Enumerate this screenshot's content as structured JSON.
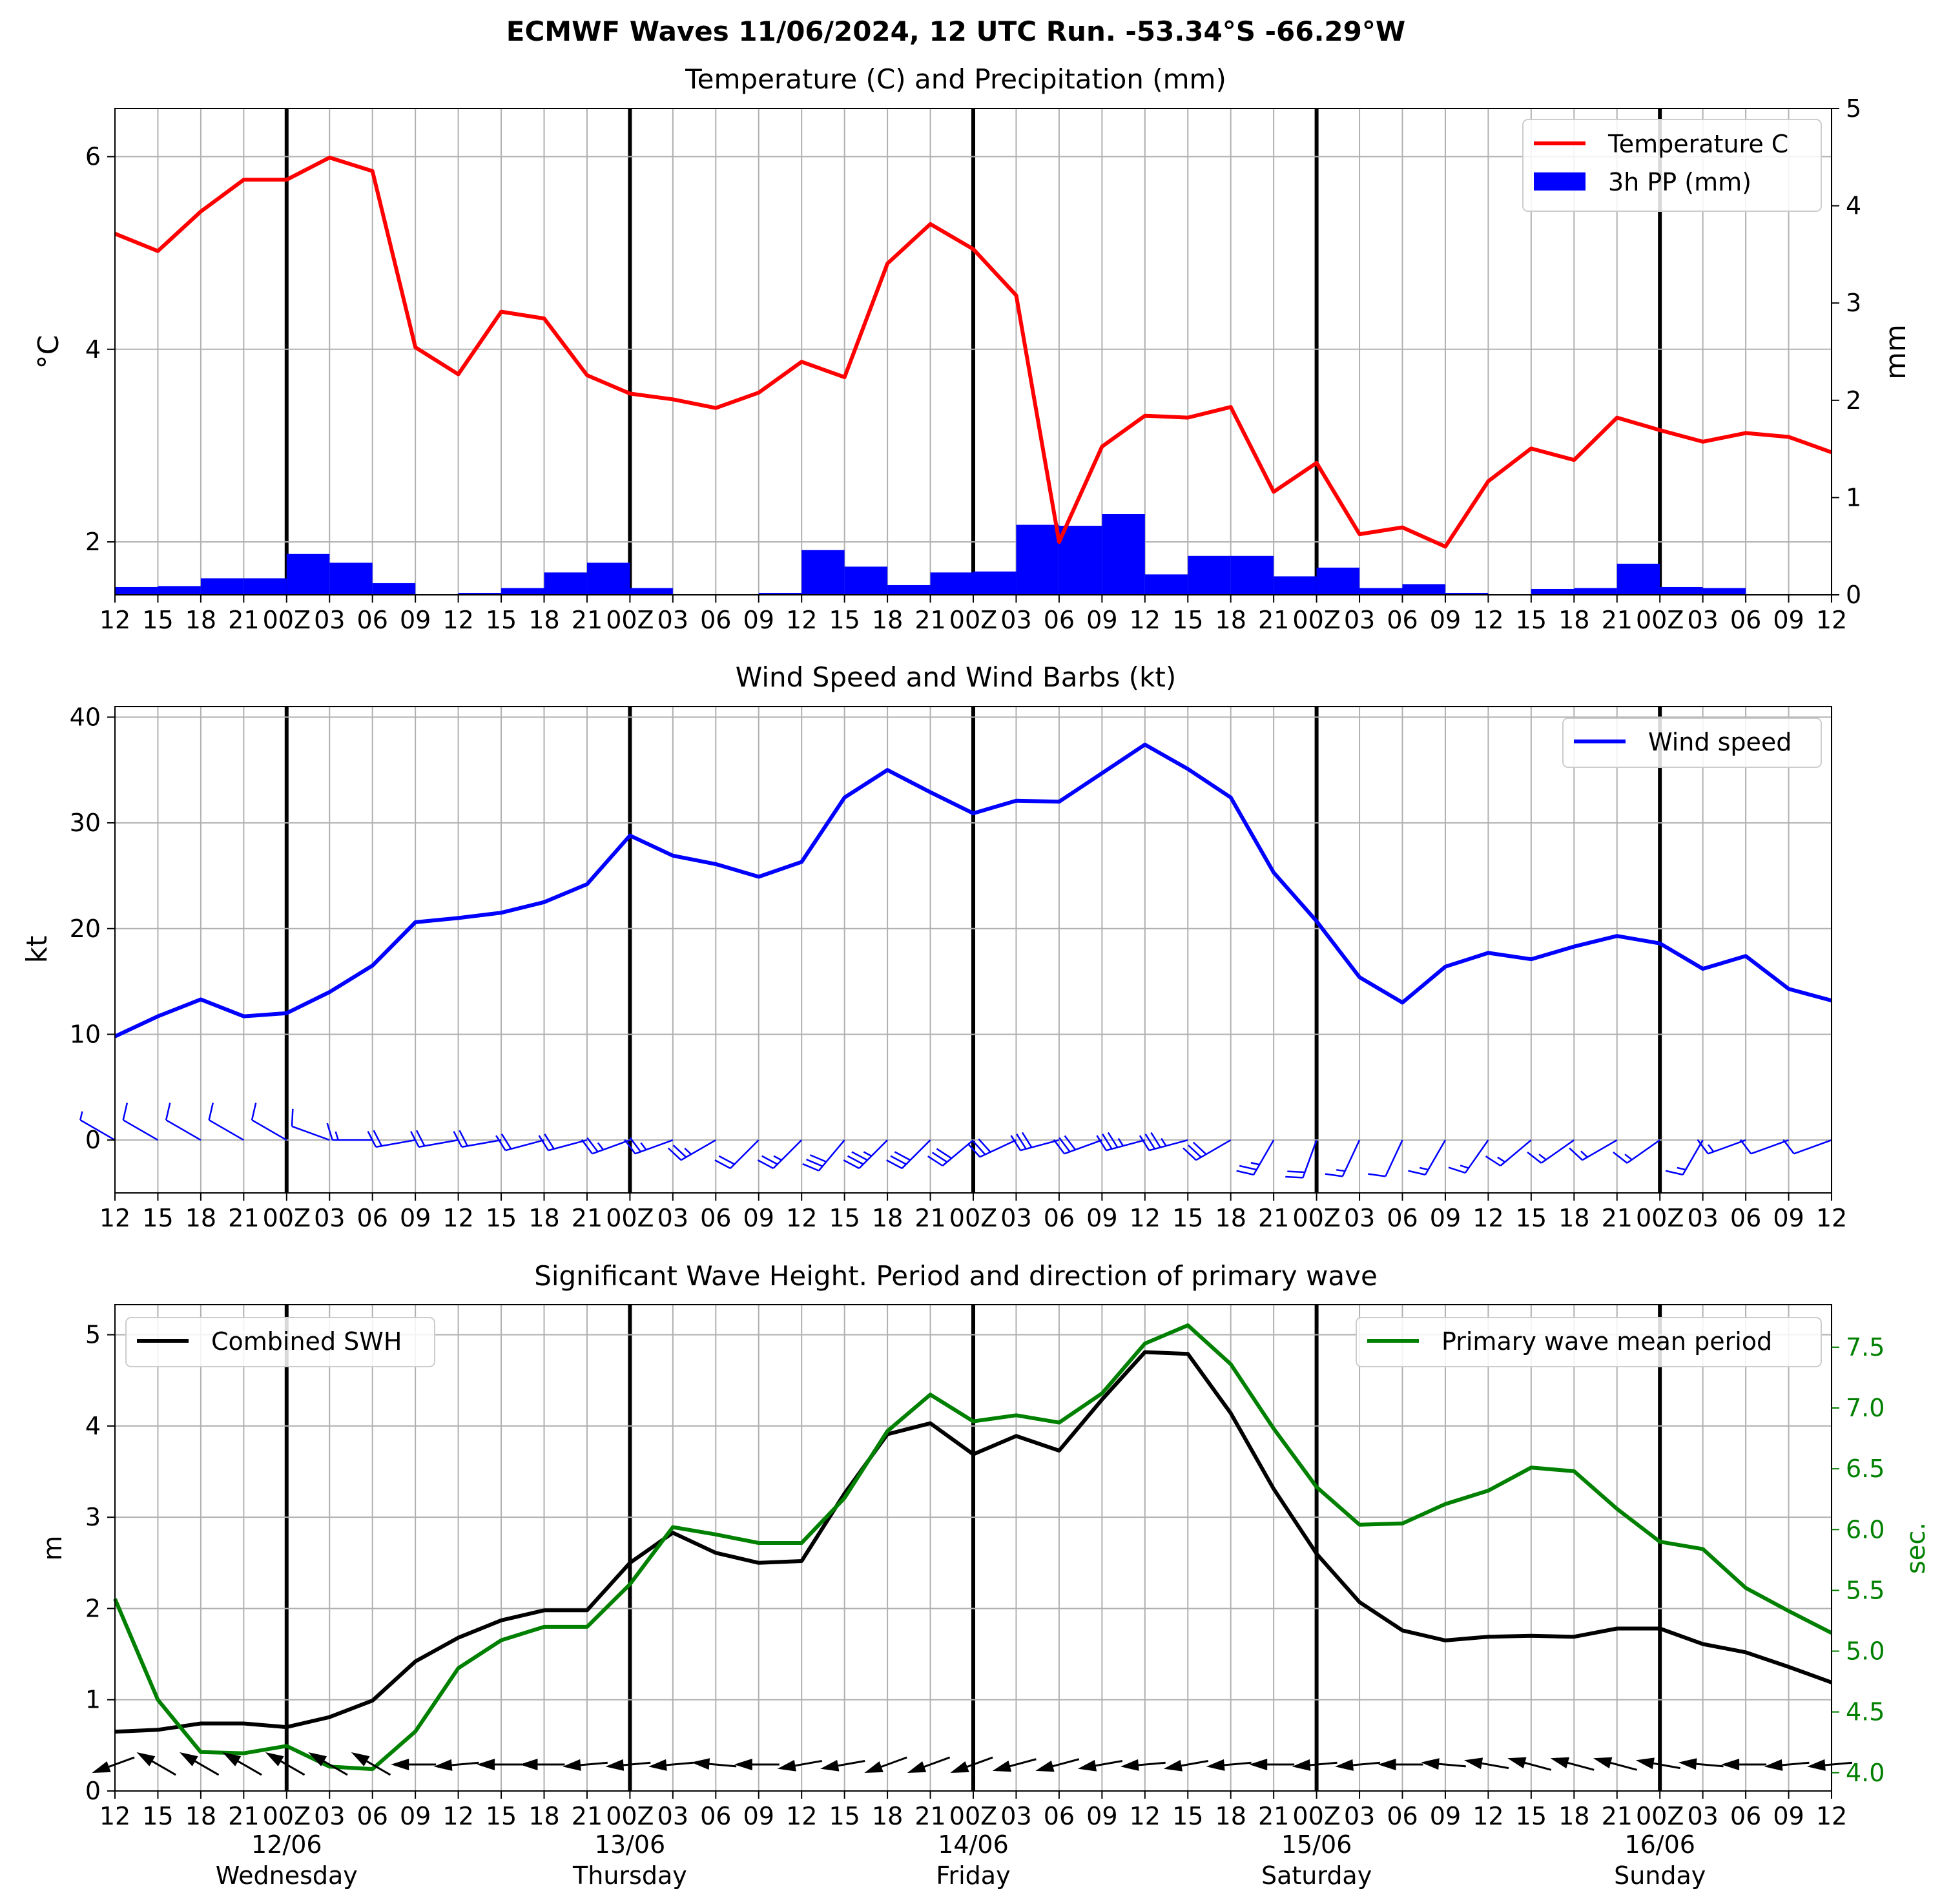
{
  "suptitle": "ECMWF Waves 11/06/2024, 12 UTC Run. -53.34°S -66.29°W",
  "colors": {
    "temperature": "#ff0000",
    "precip": "#0000ff",
    "wind": "#0000ff",
    "swh": "#000000",
    "period": "#008000",
    "grid": "#b0b0b0"
  },
  "x_tick_labels": [
    "12",
    "15",
    "18",
    "21",
    "00Z",
    "03",
    "06",
    "09",
    "12",
    "15",
    "18",
    "21",
    "00Z",
    "03",
    "06",
    "09",
    "12",
    "15",
    "18",
    "21",
    "00Z",
    "03",
    "06",
    "09",
    "12",
    "15",
    "18",
    "21",
    "00Z",
    "03",
    "06",
    "09",
    "12",
    "15",
    "18",
    "21",
    "00Z",
    "03",
    "06",
    "09",
    "12"
  ],
  "day_labels": [
    {
      "date": "12/06",
      "day": "Wednesday"
    },
    {
      "date": "13/06",
      "day": "Thursday"
    },
    {
      "date": "14/06",
      "day": "Friday"
    },
    {
      "date": "15/06",
      "day": "Saturday"
    },
    {
      "date": "16/06",
      "day": "Sunday"
    }
  ],
  "chart_data": [
    {
      "type": "line",
      "title": "Temperature (C) and Precipitation (mm)",
      "ylabel": "°C",
      "ylabel_right": "mm",
      "ylim": [
        1.45,
        6.5
      ],
      "ylim_right": [
        0,
        5
      ],
      "yticks": [
        2,
        4,
        6
      ],
      "yticks_right": [
        0,
        1,
        2,
        3,
        4,
        5
      ],
      "legend": "top-right",
      "grid": true,
      "series": [
        {
          "name": "Temperature C",
          "axis": "left",
          "kind": "line",
          "values": [
            5.2,
            5.02,
            5.43,
            5.76,
            5.76,
            5.99,
            5.85,
            4.02,
            3.74,
            4.39,
            4.32,
            3.73,
            3.54,
            3.48,
            3.39,
            3.55,
            3.87,
            3.71,
            4.89,
            5.3,
            5.04,
            4.56,
            2.0,
            2.99,
            3.31,
            3.29,
            3.4,
            2.52,
            2.82,
            2.08,
            2.15,
            1.95,
            2.63,
            2.97,
            2.85,
            3.29,
            3.16,
            3.04,
            3.13,
            3.09,
            2.93
          ]
        },
        {
          "name": "3h PP (mm)",
          "axis": "right",
          "kind": "bar",
          "values": [
            0.08,
            0.09,
            0.17,
            0.17,
            0.42,
            0.33,
            0.12,
            0.0,
            0.02,
            0.07,
            0.23,
            0.33,
            0.07,
            0.0,
            0.0,
            0.02,
            0.46,
            0.29,
            0.1,
            0.23,
            0.24,
            0.72,
            0.71,
            0.83,
            0.21,
            0.4,
            0.4,
            0.19,
            0.28,
            0.07,
            0.11,
            0.02,
            0.0,
            0.06,
            0.07,
            0.32,
            0.08,
            0.07,
            0.0,
            0.0
          ]
        }
      ]
    },
    {
      "type": "line",
      "title": "Wind Speed and Wind Barbs (kt)",
      "ylabel": "kt",
      "ylim": [
        -5,
        41
      ],
      "yticks": [
        0,
        10,
        20,
        30,
        40
      ],
      "legend": "top-right",
      "grid": true,
      "series": [
        {
          "name": "Wind speed",
          "values": [
            9.8,
            11.7,
            13.3,
            11.7,
            12.0,
            14.0,
            16.5,
            20.6,
            21.0,
            21.5,
            22.5,
            24.2,
            28.8,
            26.9,
            26.1,
            24.9,
            26.3,
            32.4,
            35.0,
            32.9,
            30.9,
            32.1,
            32.0,
            34.7,
            37.4,
            35.1,
            32.4,
            25.3,
            20.7,
            15.4,
            13.0,
            16.4,
            17.7,
            17.1,
            18.3,
            19.3,
            18.6,
            16.2,
            17.4,
            14.3,
            13.2
          ]
        }
      ],
      "barb_directions_deg": [
        300,
        300,
        300,
        300,
        300,
        290,
        270,
        260,
        260,
        260,
        255,
        255,
        250,
        250,
        240,
        225,
        225,
        220,
        225,
        225,
        230,
        245,
        255,
        250,
        255,
        255,
        240,
        210,
        200,
        205,
        205,
        210,
        215,
        230,
        235,
        240,
        235,
        210,
        250,
        250,
        250
      ]
    },
    {
      "type": "line",
      "title": "Significant Wave Height. Period and direction of primary wave",
      "ylabel": "m",
      "ylabel_right": "sec.",
      "ylim": [
        0,
        5.33
      ],
      "ylim_right": [
        3.85,
        7.85
      ],
      "yticks": [
        0,
        1,
        2,
        3,
        4,
        5
      ],
      "yticks_right": [
        4.0,
        4.5,
        5.0,
        5.5,
        6.0,
        6.5,
        7.0,
        7.5
      ],
      "grid": true,
      "series": [
        {
          "name": "Combined SWH",
          "axis": "left",
          "legend": "top-left",
          "values": [
            0.65,
            0.67,
            0.74,
            0.74,
            0.7,
            0.81,
            0.99,
            1.42,
            1.68,
            1.87,
            1.98,
            1.98,
            2.5,
            2.83,
            2.61,
            2.5,
            2.52,
            3.26,
            3.91,
            4.03,
            3.69,
            3.89,
            3.73,
            4.29,
            4.81,
            4.79,
            4.14,
            3.31,
            2.6,
            2.07,
            1.76,
            1.65,
            1.69,
            1.7,
            1.69,
            1.78,
            1.78,
            1.61,
            1.52,
            1.36,
            1.19
          ]
        },
        {
          "name": "Primary wave mean period",
          "axis": "right",
          "legend": "top-right",
          "values": [
            5.43,
            4.6,
            4.17,
            4.16,
            4.22,
            4.05,
            4.03,
            4.34,
            4.86,
            5.09,
            5.2,
            5.2,
            5.55,
            6.02,
            5.96,
            5.89,
            5.89,
            6.26,
            6.81,
            7.11,
            6.89,
            6.94,
            6.88,
            7.12,
            7.53,
            7.68,
            7.36,
            6.83,
            6.35,
            6.04,
            6.05,
            6.21,
            6.32,
            6.51,
            6.48,
            6.17,
            5.9,
            5.84,
            5.52,
            5.33,
            5.15
          ]
        }
      ],
      "wave_directions_deg": [
        250,
        300,
        300,
        300,
        300,
        300,
        300,
        270,
        265,
        270,
        270,
        265,
        265,
        265,
        275,
        270,
        260,
        260,
        250,
        250,
        250,
        255,
        255,
        260,
        265,
        260,
        265,
        270,
        265,
        265,
        270,
        275,
        280,
        285,
        285,
        285,
        280,
        275,
        270,
        265,
        265
      ]
    }
  ]
}
